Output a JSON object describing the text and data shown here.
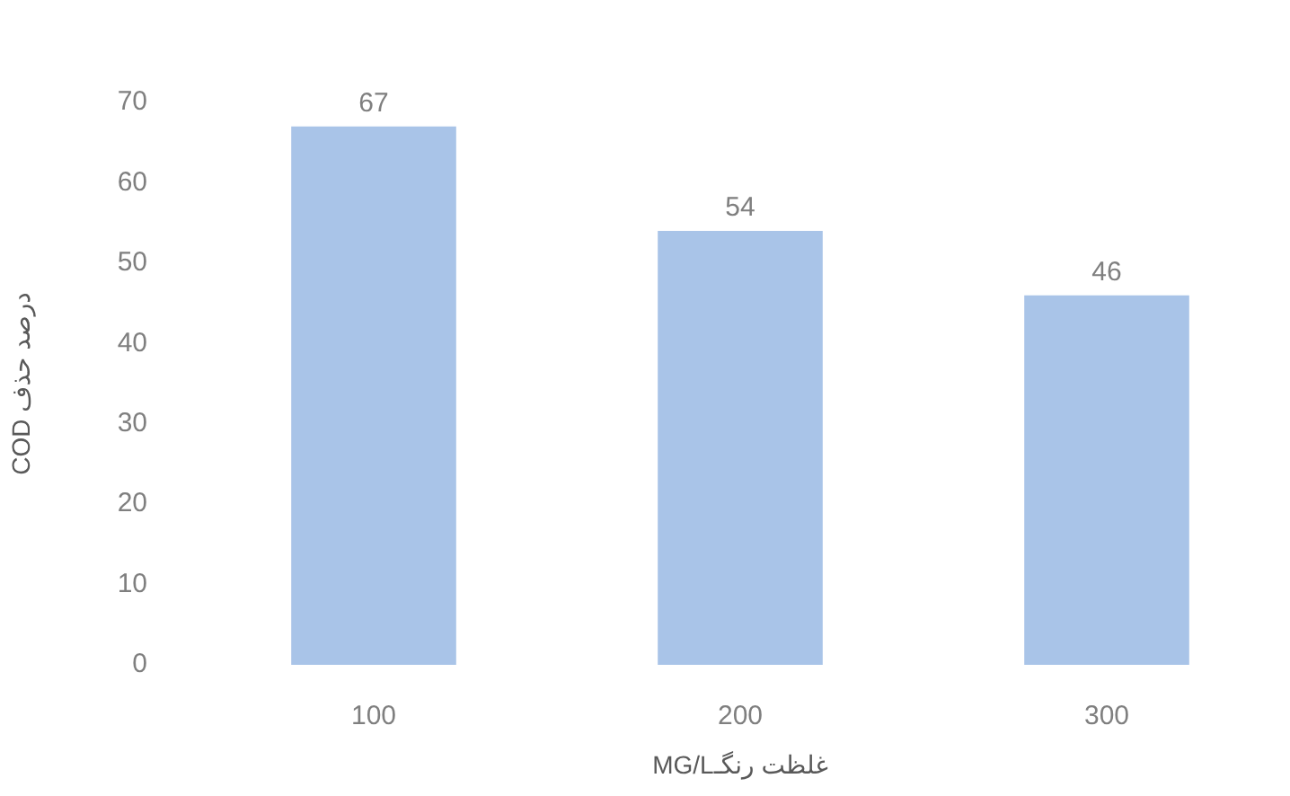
{
  "chart_data": {
    "type": "bar",
    "categories": [
      "100",
      "200",
      "300"
    ],
    "values": [
      67,
      54,
      46
    ],
    "color": "#a9c4e8",
    "xlabel": "غلظت رنگـMG/L",
    "ylabel": "درصد حذف COD",
    "ylim": [
      0,
      70
    ],
    "yticks": [
      0,
      10,
      20,
      30,
      40,
      50,
      60,
      70
    ],
    "data_labels": true
  }
}
